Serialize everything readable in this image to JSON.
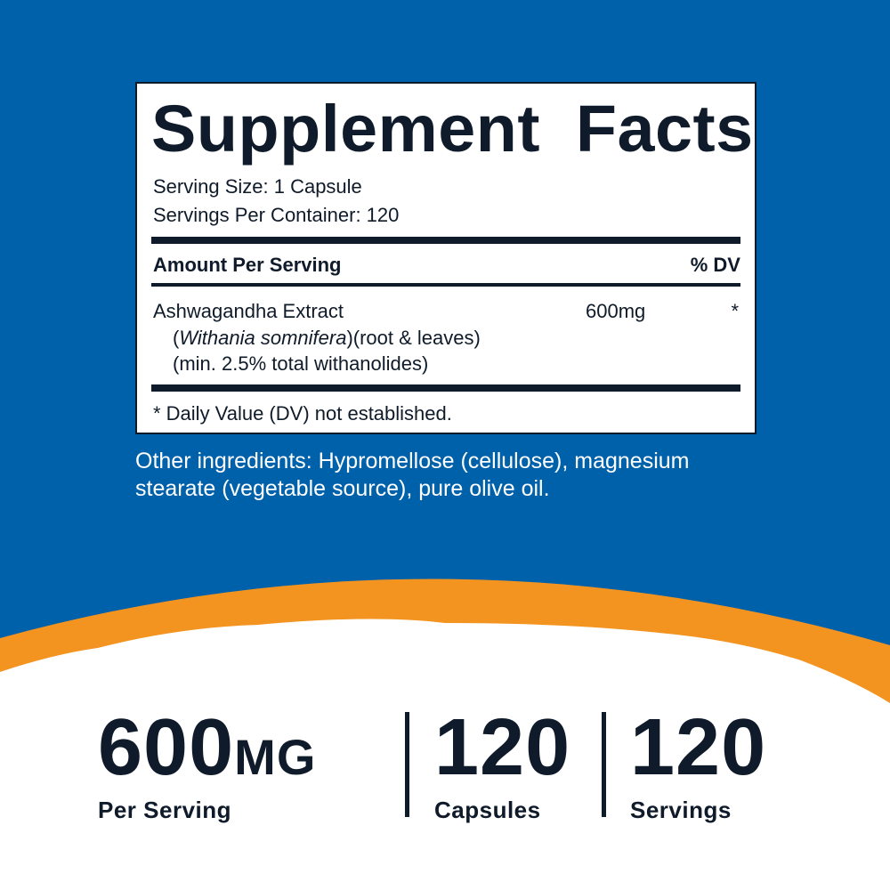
{
  "colors": {
    "blue": "#0061ab",
    "orange": "#f39320",
    "text": "#0f1b2a"
  },
  "facts": {
    "title": "Supplement Facts",
    "serving_size": "Serving Size: 1 Capsule",
    "servings_per_container": "Servings Per Container: 120",
    "amount_header": "Amount Per Serving",
    "dv_header": "% DV",
    "ingredient": {
      "name": "Ashwagandha Extract",
      "latin_open": "(",
      "latin": "Withania somnifera",
      "detail": ")(root & leaves)",
      "note": "(min. 2.5% total withanolides)",
      "amount": "600mg",
      "dv": "*"
    },
    "footnote": "* Daily Value (DV) not established."
  },
  "other_ingredients": "Other ingredients: Hypromellose (cellulose), magnesium stearate (vegetable source), pure olive oil.",
  "stats": [
    {
      "value": "600",
      "unit": "MG",
      "label": "Per Serving"
    },
    {
      "value": "120",
      "unit": "",
      "label": "Capsules"
    },
    {
      "value": "120",
      "unit": "",
      "label": "Servings"
    }
  ]
}
